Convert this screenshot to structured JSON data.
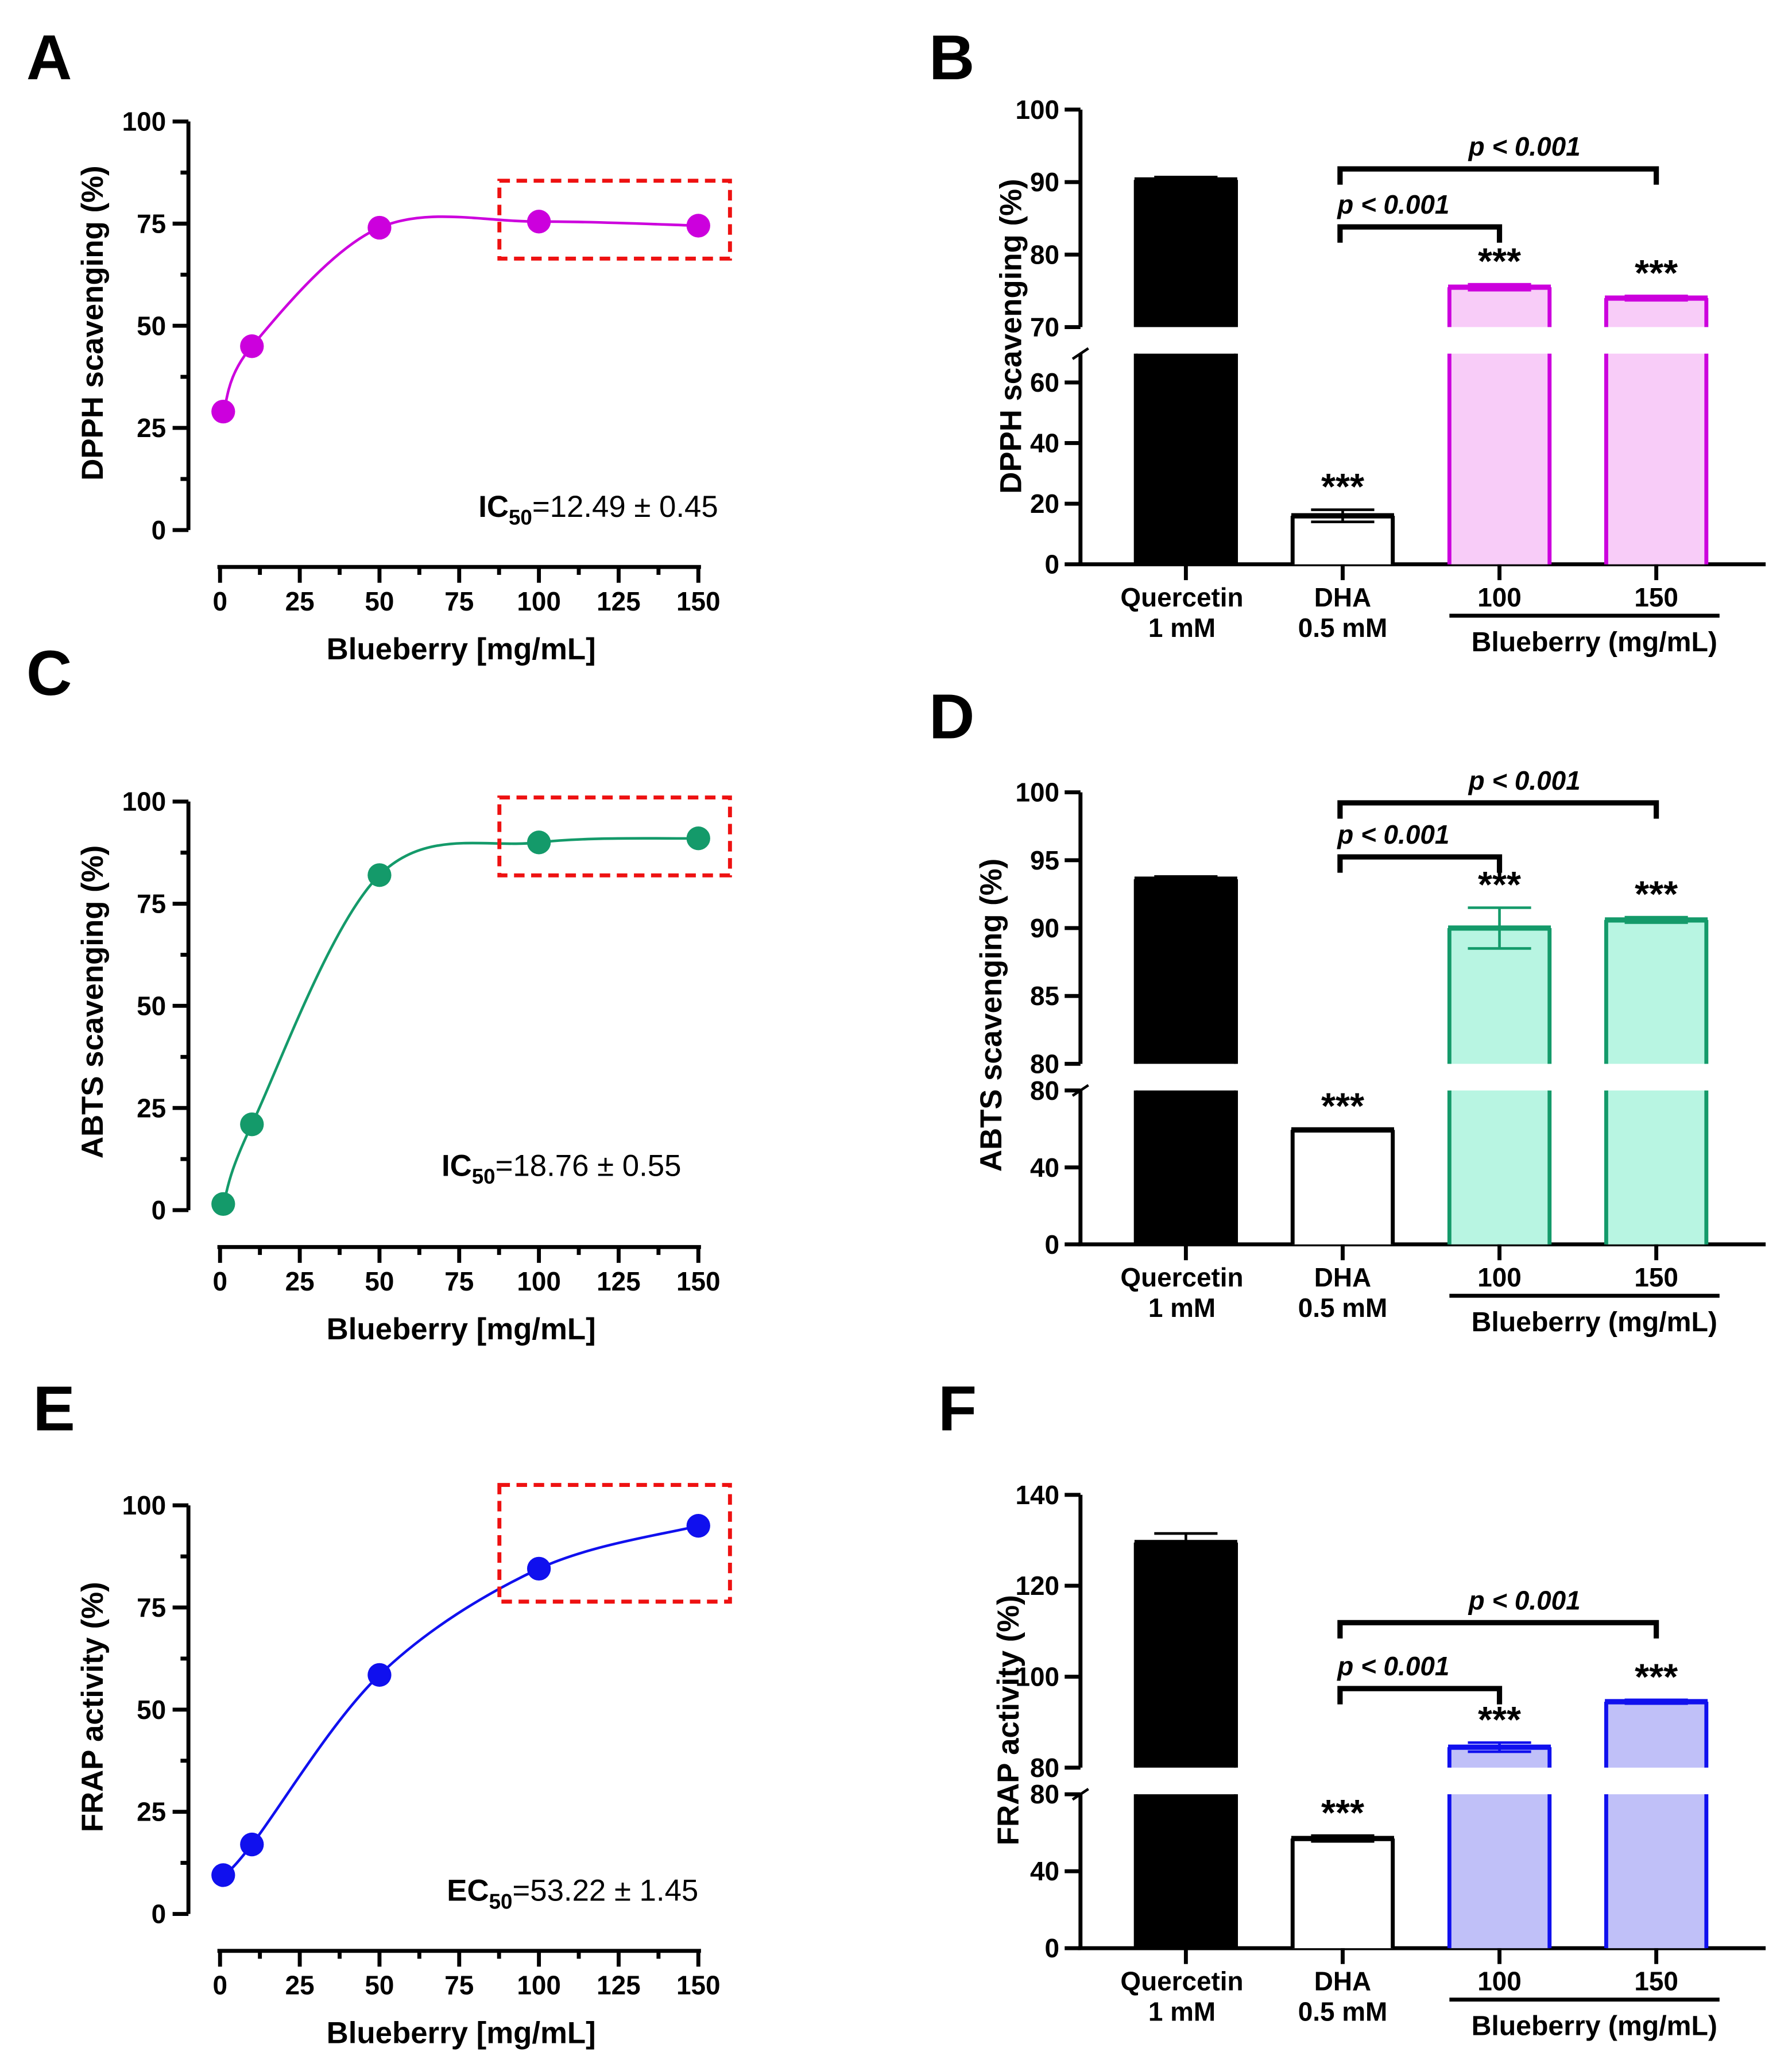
{
  "chart_data": [
    {
      "panel": "A",
      "type": "line",
      "title": "A",
      "xlabel": "Blueberry [mg/mL]",
      "ylabel": "DPPH scavenging (%)",
      "x": [
        1,
        10,
        50,
        100,
        150
      ],
      "y": [
        29,
        45,
        74,
        75.5,
        74.5
      ],
      "xlim": [
        0,
        150
      ],
      "ylim": [
        0,
        100
      ],
      "xticks": [
        "0",
        "25",
        "50",
        "75",
        "100",
        "125",
        "150"
      ],
      "yticks": [
        "0",
        "25",
        "50",
        "75",
        "100"
      ],
      "color": "#cc00dd",
      "annotation_prefix": "IC",
      "annotation_sub": "50",
      "annotation_value": "=12.49 ± 0.45",
      "highlight_x": [
        100,
        150
      ]
    },
    {
      "panel": "B",
      "type": "bar",
      "title": "B",
      "ylabel": "DPPH scavenging (%)",
      "categories": [
        "Quercetin",
        "DHA",
        "100",
        "150"
      ],
      "category_sub": [
        "1 mM",
        "0.5 mM",
        "",
        ""
      ],
      "values": [
        90.3,
        16,
        75.5,
        74
      ],
      "errors": [
        0.4,
        2,
        0.4,
        0.3
      ],
      "stars": [
        "",
        "***",
        "***",
        "***"
      ],
      "lower_ticks": [
        "0",
        "20",
        "40",
        "60"
      ],
      "upper_ticks": [
        "70",
        "80",
        "90",
        "100"
      ],
      "ylim_lower": [
        0,
        69.5
      ],
      "ylim_upper": [
        70,
        100
      ],
      "group_label": "Blueberry (mg/mL)",
      "comparisons": [
        "p < 0.001",
        "p < 0.001"
      ],
      "color": "#cc00dd",
      "fill": "#f8ccf8"
    },
    {
      "panel": "C",
      "type": "line",
      "title": "C",
      "xlabel": "Blueberry [mg/mL]",
      "ylabel": "ABTS scavenging (%)",
      "x": [
        1,
        10,
        50,
        100,
        150
      ],
      "y": [
        1.5,
        21,
        82,
        90,
        91
      ],
      "xlim": [
        0,
        150
      ],
      "ylim": [
        0,
        100
      ],
      "xticks": [
        "0",
        "25",
        "50",
        "75",
        "100",
        "125",
        "150"
      ],
      "yticks": [
        "0",
        "25",
        "50",
        "75",
        "100"
      ],
      "color": "#149a6a",
      "annotation_prefix": "IC",
      "annotation_sub": "50",
      "annotation_value": "=18.76 ± 0.55",
      "highlight_x": [
        100,
        150
      ]
    },
    {
      "panel": "D",
      "type": "bar",
      "title": "D",
      "ylabel": "ABTS scavenging (%)",
      "categories": [
        "Quercetin",
        "DHA",
        "100",
        "150"
      ],
      "category_sub": [
        "1 mM",
        "0.5 mM",
        "",
        ""
      ],
      "values": [
        93.6,
        59.5,
        90,
        90.6
      ],
      "errors": [
        0.2,
        0.5,
        1.5,
        0.2
      ],
      "stars": [
        "",
        "***",
        "***",
        "***"
      ],
      "lower_ticks": [
        "0",
        "40",
        "80"
      ],
      "upper_ticks": [
        "80",
        "85",
        "90",
        "95",
        "100"
      ],
      "ylim_lower": [
        0,
        80
      ],
      "ylim_upper": [
        80,
        100
      ],
      "group_label": "Blueberry (mg/mL)",
      "comparisons": [
        "p < 0.001",
        "p < 0.001"
      ],
      "color": "#149a6a",
      "fill": "#b8f5e2"
    },
    {
      "panel": "E",
      "type": "line",
      "title": "E",
      "xlabel": "Blueberry [mg/mL]",
      "ylabel": "FRAP activity (%)",
      "x": [
        1,
        10,
        50,
        100,
        150
      ],
      "y": [
        9.5,
        17,
        58.5,
        84.5,
        95
      ],
      "xlim": [
        0,
        150
      ],
      "ylim": [
        0,
        100
      ],
      "xticks": [
        "0",
        "25",
        "50",
        "75",
        "100",
        "125",
        "150"
      ],
      "yticks": [
        "0",
        "25",
        "50",
        "75",
        "100"
      ],
      "color": "#1010ee",
      "annotation_prefix": "EC",
      "annotation_sub": "50",
      "annotation_value": "=53.22 ± 1.45",
      "highlight_x": [
        100,
        150
      ]
    },
    {
      "panel": "F",
      "type": "bar",
      "title": "F",
      "ylabel": "FRAP activity (%)",
      "categories": [
        "Quercetin",
        "DHA",
        "100",
        "150"
      ],
      "category_sub": [
        "1 mM",
        "0.5 mM",
        "",
        ""
      ],
      "values": [
        129.5,
        57,
        84.5,
        94.5
      ],
      "errors": [
        2,
        1.5,
        1,
        0.4
      ],
      "stars": [
        "",
        "***",
        "***",
        "***"
      ],
      "lower_ticks": [
        "0",
        "40",
        "80"
      ],
      "upper_ticks": [
        "80",
        "100",
        "120",
        "140"
      ],
      "ylim_lower": [
        0,
        80
      ],
      "ylim_upper": [
        80,
        140
      ],
      "group_label": "Blueberry (mg/mL)",
      "comparisons": [
        "p < 0.001",
        "p < 0.001"
      ],
      "color": "#1010ee",
      "fill": "#c0c0f8"
    }
  ]
}
